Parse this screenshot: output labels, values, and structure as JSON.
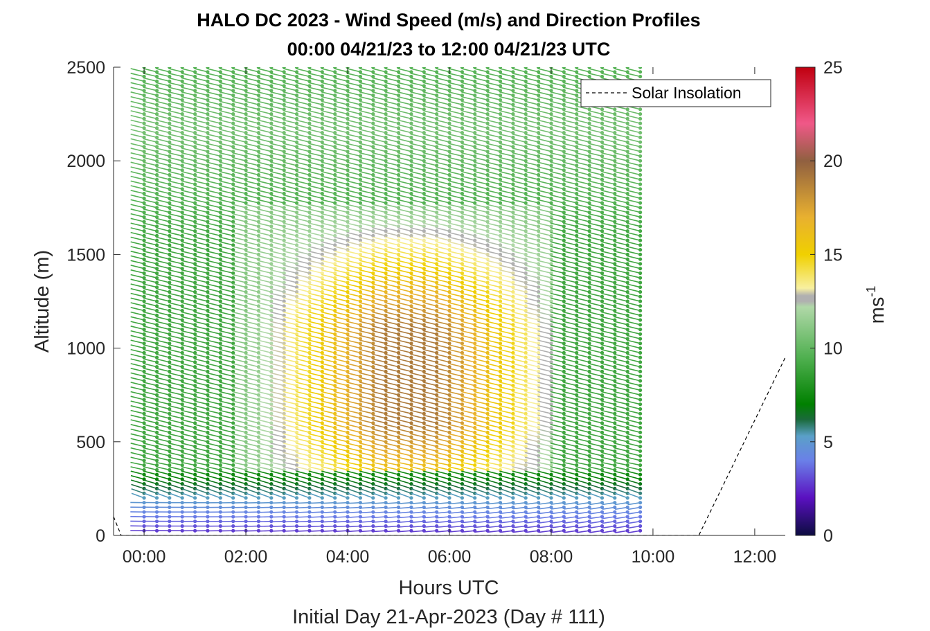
{
  "chart_data": {
    "type": "wind-barb-profile",
    "title": "HALO DC 2023 - Wind Speed (m/s) and Direction Profiles",
    "subtitle": "00:00 04/21/23 to 12:00 04/21/23  UTC",
    "xlabel": "Hours UTC",
    "xlabel2": "Initial Day 21-Apr-2023 (Day # 111)",
    "ylabel": "Altitude (m)",
    "xlim": [
      -0.6,
      12.6
    ],
    "ylim": [
      0,
      2500
    ],
    "x_ticks": [
      0,
      2,
      4,
      6,
      8,
      10,
      12
    ],
    "x_tick_labels": [
      "00:00",
      "02:00",
      "04:00",
      "06:00",
      "08:00",
      "10:00",
      "12:00"
    ],
    "y_ticks": [
      0,
      500,
      1000,
      1500,
      2000,
      2500
    ],
    "y_tick_labels": [
      "0",
      "500",
      "1000",
      "1500",
      "2000",
      "2500"
    ],
    "colorbar": {
      "label": "ms",
      "label_exponent": "-1",
      "range": [
        0,
        25
      ],
      "ticks": [
        0,
        5,
        10,
        15,
        20,
        25
      ],
      "tick_labels": [
        "0",
        "5",
        "10",
        "15",
        "20",
        "25"
      ],
      "stops": [
        {
          "value": 0,
          "color": "#0c0c40"
        },
        {
          "value": 2,
          "color": "#5a10c0"
        },
        {
          "value": 4,
          "color": "#6a80e8"
        },
        {
          "value": 5.3,
          "color": "#5aa0c8"
        },
        {
          "value": 6.2,
          "color": "#1a6a3a"
        },
        {
          "value": 7,
          "color": "#008000"
        },
        {
          "value": 9.5,
          "color": "#50b050"
        },
        {
          "value": 12.2,
          "color": "#b0d8a8"
        },
        {
          "value": 12.5,
          "color": "#b0b0b0"
        },
        {
          "value": 12.8,
          "color": "#b0b0b0"
        },
        {
          "value": 13.2,
          "color": "#f8f0a0"
        },
        {
          "value": 15,
          "color": "#f0d000"
        },
        {
          "value": 17,
          "color": "#e8b030"
        },
        {
          "value": 20,
          "color": "#906040"
        },
        {
          "value": 22,
          "color": "#f05888"
        },
        {
          "value": 25,
          "color": "#c00010"
        }
      ]
    },
    "barb_grid": {
      "times_h": [
        0,
        0.25,
        0.5,
        0.75,
        1,
        1.25,
        1.5,
        1.75,
        2,
        2.25,
        2.5,
        2.75,
        3,
        3.25,
        3.5,
        3.75,
        4,
        4.25,
        4.5,
        4.75,
        5,
        5.25,
        5.5,
        5.75,
        6,
        6.25,
        6.5,
        6.75,
        7,
        7.25,
        7.5,
        7.75,
        8,
        8.25,
        8.5,
        8.75,
        9,
        9.25,
        9.5,
        9.75
      ],
      "altitude_step_m": 25,
      "altitude_max_m": 2500,
      "speed_field_ms": [
        {
          "region": "surface layer",
          "alt_m": [
            0,
            180
          ],
          "speed": 3
        },
        {
          "region": "low jet core",
          "alt_m": [
            400,
            1300
          ],
          "time_h": [
            3.5,
            7.5
          ],
          "speed": 17
        },
        {
          "region": "jet edge",
          "alt_m": [
            350,
            1750
          ],
          "time_h": [
            2.0,
            8.0
          ],
          "speed": 14
        },
        {
          "region": "aloft",
          "alt_m": [
            1750,
            2500
          ],
          "speed": 9
        }
      ],
      "direction_aloft": "westerly (from W)",
      "direction_near_surface": "southerly veering"
    },
    "solar_insolation": [
      {
        "x": -0.6,
        "y": 100
      },
      {
        "x": -0.45,
        "y": 0
      },
      {
        "x": 10.9,
        "y": 0
      },
      {
        "x": 12.6,
        "y": 950
      }
    ],
    "legend": [
      {
        "label": "Solar Insolation",
        "style": "dashed",
        "color": "#000000"
      }
    ],
    "legend_position": "top-right"
  }
}
